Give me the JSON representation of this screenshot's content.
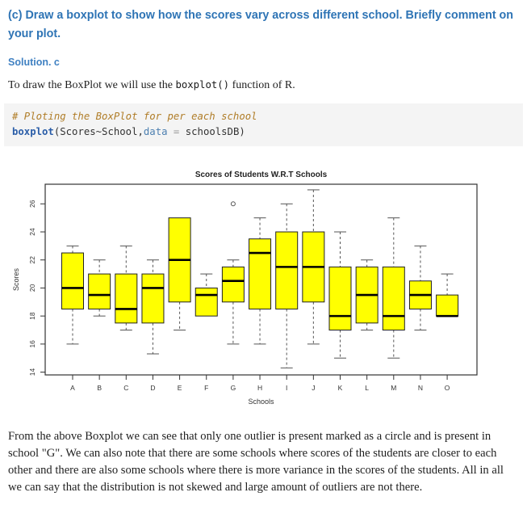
{
  "colors": {
    "heading_blue": "#2E74B5",
    "solution_blue": "#4081C2",
    "body_text": "#1F1F1F",
    "code_background": "#F4F4F4",
    "code_comment": "#B07D28",
    "code_function": "#2A5DA8",
    "code_argument": "#4C7FB0",
    "code_operator": "#999999",
    "code_plain": "#333333",
    "axis_color": "#333333",
    "box_fill": "#FFFF00"
  },
  "page": {
    "heading": "(c) Draw a boxplot to show how the scores vary across different school. Briefly comment on your plot.",
    "subheading": "Solution. c",
    "intro": {
      "before": "To draw the BoxPlot we will use the ",
      "code": "boxplot()",
      "after": " function of R."
    },
    "conclusion": "From the above Boxplot we can see that only one outlier is present marked as a circle and is present in school \"G\". We can also note that there are some schools where scores of the students are closer to each other and there are also some schools where there is more variance in the scores of the students. All in all we can say that the distribution is not skewed and large amount of outliers are not there."
  },
  "code": {
    "comment": "# Ploting the BoxPlot for per each school",
    "tokens": [
      {
        "text": "boxplot",
        "style": "function"
      },
      {
        "text": "(Scores~School,",
        "style": "plain"
      },
      {
        "text": "data",
        "style": "argument"
      },
      {
        "text": " ",
        "style": "plain"
      },
      {
        "text": "=",
        "style": "operator"
      },
      {
        "text": " ",
        "style": "plain"
      },
      {
        "text": "schoolsDB)",
        "style": "plain"
      }
    ]
  },
  "chart_data": {
    "type": "boxplot",
    "title": "Scores of Students W.R.T Schools",
    "xlabel": "Schools",
    "ylabel": "Scores",
    "ylim": [
      13.8,
      27.4
    ],
    "yticks": [
      14,
      16,
      18,
      20,
      22,
      24,
      26
    ],
    "grid": false,
    "legend": false,
    "box_fill": "#FFFF00",
    "categories": [
      "A",
      "B",
      "C",
      "D",
      "E",
      "F",
      "G",
      "H",
      "I",
      "J",
      "K",
      "L",
      "M",
      "N",
      "O"
    ],
    "boxes": [
      {
        "school": "A",
        "whisker_low": 16,
        "q1": 18.5,
        "median": 20,
        "q3": 22.5,
        "whisker_high": 23,
        "outliers": []
      },
      {
        "school": "B",
        "whisker_low": 18,
        "q1": 18.5,
        "median": 19.5,
        "q3": 21,
        "whisker_high": 22,
        "outliers": []
      },
      {
        "school": "C",
        "whisker_low": 17,
        "q1": 17.5,
        "median": 18.5,
        "q3": 21,
        "whisker_high": 23,
        "outliers": []
      },
      {
        "school": "D",
        "whisker_low": 15.3,
        "q1": 17.5,
        "median": 20,
        "q3": 21,
        "whisker_high": 22,
        "outliers": []
      },
      {
        "school": "E",
        "whisker_low": 17,
        "q1": 19,
        "median": 22,
        "q3": 25,
        "whisker_high": 25,
        "outliers": []
      },
      {
        "school": "F",
        "whisker_low": 18,
        "q1": 18,
        "median": 19.5,
        "q3": 20,
        "whisker_high": 21,
        "outliers": []
      },
      {
        "school": "G",
        "whisker_low": 16,
        "q1": 19,
        "median": 20.5,
        "q3": 21.5,
        "whisker_high": 22,
        "outliers": [
          26
        ]
      },
      {
        "school": "H",
        "whisker_low": 16,
        "q1": 18.5,
        "median": 22.5,
        "q3": 23.5,
        "whisker_high": 25,
        "outliers": []
      },
      {
        "school": "I",
        "whisker_low": 14.3,
        "q1": 18.5,
        "median": 21.5,
        "q3": 24,
        "whisker_high": 26,
        "outliers": []
      },
      {
        "school": "J",
        "whisker_low": 16,
        "q1": 19,
        "median": 21.5,
        "q3": 24,
        "whisker_high": 27,
        "outliers": []
      },
      {
        "school": "K",
        "whisker_low": 15,
        "q1": 17,
        "median": 18,
        "q3": 21.5,
        "whisker_high": 24,
        "outliers": []
      },
      {
        "school": "L",
        "whisker_low": 17,
        "q1": 17.5,
        "median": 19.5,
        "q3": 21.5,
        "whisker_high": 22,
        "outliers": []
      },
      {
        "school": "M",
        "whisker_low": 15,
        "q1": 17,
        "median": 18,
        "q3": 21.5,
        "whisker_high": 25,
        "outliers": []
      },
      {
        "school": "N",
        "whisker_low": 17,
        "q1": 18.5,
        "median": 19.5,
        "q3": 20.5,
        "whisker_high": 23,
        "outliers": []
      },
      {
        "school": "O",
        "whisker_low": 18,
        "q1": 18,
        "median": 18,
        "q3": 19.5,
        "whisker_high": 21,
        "outliers": []
      }
    ]
  }
}
